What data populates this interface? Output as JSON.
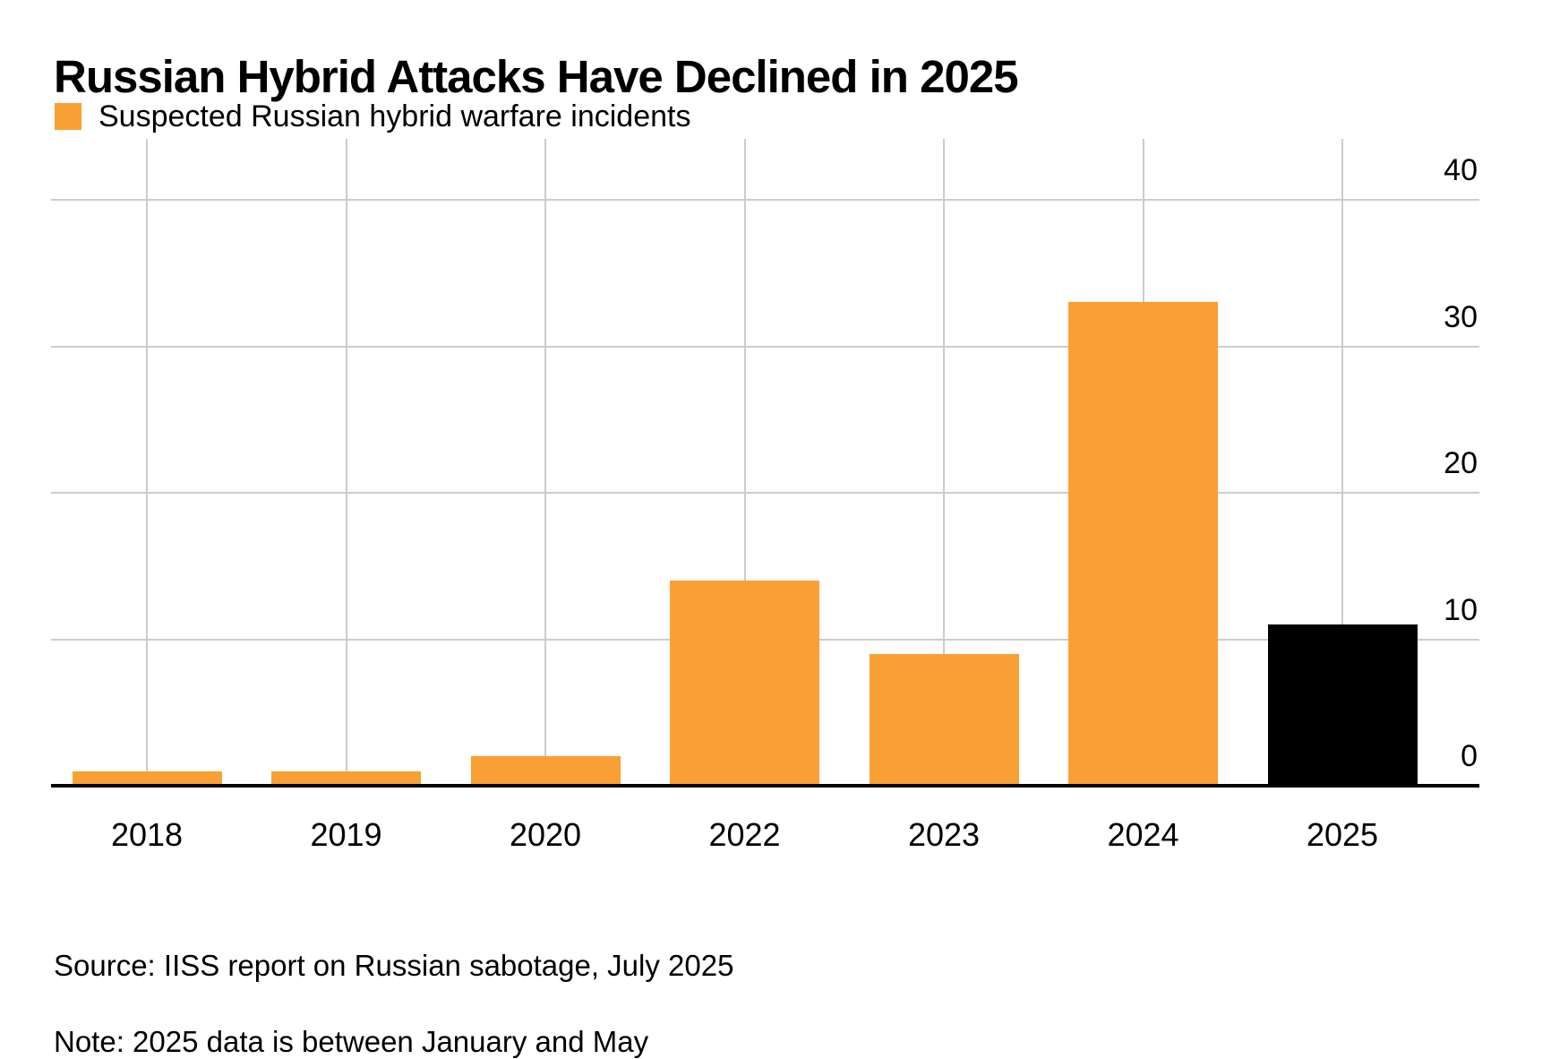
{
  "header": {
    "title": "Russian Hybrid Attacks Have Declined in 2025"
  },
  "legend": {
    "label": "Suspected Russian hybrid warfare incidents",
    "swatch_color": "#FA9F33"
  },
  "footer": {
    "source": "Source: IISS report on Russian sabotage, July 2025",
    "note": "Note: 2025 data is between January and May"
  },
  "colors": {
    "bar_orange": "#FA9F33",
    "bar_highlight_black": "#000000",
    "gridline": "#CCCCCC",
    "axis": "#000000",
    "text": "#000000",
    "background": "#FFFFFF"
  },
  "chart_data": {
    "type": "bar",
    "title": "Russian Hybrid Attacks Have Declined in 2025",
    "categories": [
      "2018",
      "2019",
      "2020",
      "2022",
      "2023",
      "2024",
      "2025"
    ],
    "values": [
      1,
      1,
      2,
      14,
      9,
      33,
      11
    ],
    "bar_colors": [
      "#FA9F33",
      "#FA9F33",
      "#FA9F33",
      "#FA9F33",
      "#FA9F33",
      "#FA9F33",
      "#000000"
    ],
    "series_name": "Suspected Russian hybrid warfare incidents",
    "xlabel": "",
    "ylabel": "",
    "y_ticks": [
      0,
      10,
      20,
      30,
      40
    ],
    "ylim": [
      0,
      44.5
    ],
    "grid": true,
    "y_tick_side": "right",
    "legend_position": "top-left"
  }
}
